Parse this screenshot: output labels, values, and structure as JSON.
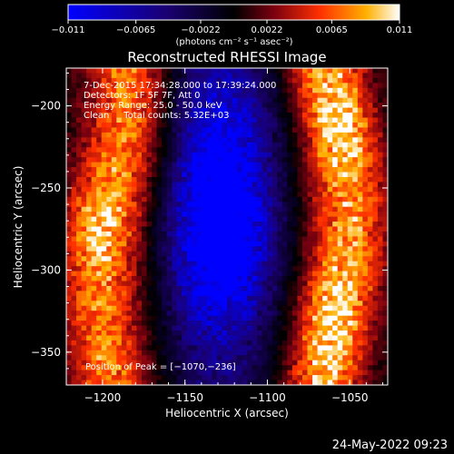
{
  "colorbar": {
    "tick_labels": [
      "-0.011",
      "-0.0065",
      "-0.0022",
      "0.0022",
      "0.0065",
      "0.011"
    ],
    "unit_label": "(photons cm⁻² s⁻¹ asec⁻²)",
    "range": [
      -0.011,
      0.011
    ],
    "colors": [
      "#0000ff",
      "#1a0070",
      "#000000",
      "#7a0010",
      "#ff3000",
      "#ffb000",
      "#ffffff"
    ]
  },
  "chart_data": {
    "type": "heatmap",
    "title": "Reconstructed RHESSI Image",
    "xlabel": "Heliocentric X (arcsec)",
    "ylabel": "Heliocentric Y (arcsec)",
    "xlim": [
      -1222,
      -1027
    ],
    "ylim": [
      -370,
      -177
    ],
    "x_ticks": [
      -1200,
      -1150,
      -1100,
      -1050
    ],
    "y_ticks": [
      -200,
      -250,
      -300,
      -350
    ],
    "x_tick_labels": [
      "−1200",
      "−1150",
      "−1100",
      "−1050"
    ],
    "y_tick_labels": [
      "−200",
      "−250",
      "−300",
      "−350"
    ],
    "grid": false,
    "annotations": [
      "7-Dec-2015 17:34:28.000 to 17:39:24.000",
      "Detectors: 1F 5F 7F, Att 0",
      "Energy Range: 25.0 - 50.0 keV",
      "Clean     Total counts: 5.32E+03"
    ],
    "peak_label": "Position of Peak = [−1070,−236]",
    "peak_position": [
      -1070,
      -236
    ],
    "features": [
      {
        "kind": "bright-band",
        "x": [
          -1220,
          -1165
        ],
        "y_range": [
          -370,
          -177
        ],
        "value": 0.0065
      },
      {
        "kind": "bright-band",
        "x": [
          -1085,
          -1030
        ],
        "y_range": [
          -370,
          -177
        ],
        "value": 0.0075
      },
      {
        "kind": "negative-core",
        "x": -1130,
        "y": -285,
        "value": -0.0095
      },
      {
        "kind": "negative-core",
        "x": -1125,
        "y": -235,
        "value": -0.006
      }
    ]
  },
  "footer_date": "24-May-2022 09:23"
}
